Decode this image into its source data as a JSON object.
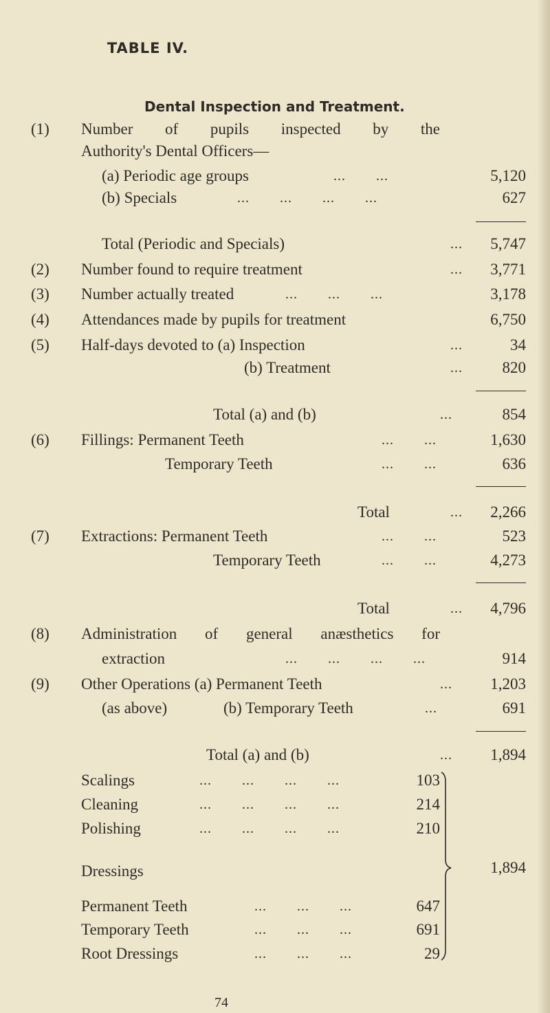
{
  "title": "TABLE IV.",
  "heading": "Dental Inspection and Treatment.",
  "leaders": {
    "d2": "... ...",
    "d3": "... ... ...",
    "d4": "... ... ... ...",
    "d1": "...",
    "d1b": "..."
  },
  "rows": {
    "r1": {
      "no": "(1)",
      "line1": "Number of pupils inspected by the",
      "line2": "Authority's Dental Officers—"
    },
    "r1a": {
      "label": "(a) Periodic age groups",
      "value": "5,120"
    },
    "r1b": {
      "label": "(b) Specials",
      "value": "627"
    },
    "r1t": {
      "label": "Total (Periodic and Specials)",
      "value": "5,747"
    },
    "r2": {
      "no": "(2)",
      "label": "Number found to require treatment",
      "value": "3,771"
    },
    "r3": {
      "no": "(3)",
      "label": "Number actually treated",
      "value": "3,178"
    },
    "r4": {
      "no": "(4)",
      "label": "Attendances made by pupils for treatment",
      "value": "6,750"
    },
    "r5a": {
      "no": "(5)",
      "label": "Half-days devoted to (a) Inspection",
      "value": "34"
    },
    "r5b": {
      "label": "(b) Treatment",
      "value": "820"
    },
    "r5t": {
      "label": "Total (a) and (b)",
      "value": "854"
    },
    "r6a": {
      "no": "(6)",
      "label": "Fillings: Permanent Teeth",
      "value": "1,630"
    },
    "r6b": {
      "label": "Temporary Teeth",
      "value": "636"
    },
    "r6t": {
      "label": "Total",
      "value": "2,266"
    },
    "r7a": {
      "no": "(7)",
      "label": "Extractions: Permanent Teeth",
      "value": "523"
    },
    "r7b": {
      "label": "Temporary Teeth",
      "value": "4,273"
    },
    "r7t": {
      "label": "Total",
      "value": "4,796"
    },
    "r8": {
      "no": "(8)",
      "line1": "Administration of general anæsthetics for",
      "label": "extraction",
      "value": "914"
    },
    "r9a": {
      "no": "(9)",
      "label": "Other Operations (a) Permanent Teeth",
      "value": "1,203"
    },
    "r9b": {
      "label1": "(as above)",
      "label": "(b) Temporary Teeth",
      "value": "691"
    },
    "r9t": {
      "label": "Total (a) and (b)",
      "value": "1,894"
    }
  },
  "breakdown": {
    "items": [
      {
        "label": "Scalings",
        "value": "103"
      },
      {
        "label": "Cleaning",
        "value": "214"
      },
      {
        "label": "Polishing",
        "value": "210"
      },
      {
        "label": "Dressings"
      },
      {
        "label": "Permanent Teeth",
        "value": "647"
      },
      {
        "label": "Temporary Teeth",
        "value": "691"
      },
      {
        "label": "Root Dressings",
        "value": "29"
      }
    ],
    "total": "1,894"
  },
  "page_number": "74"
}
